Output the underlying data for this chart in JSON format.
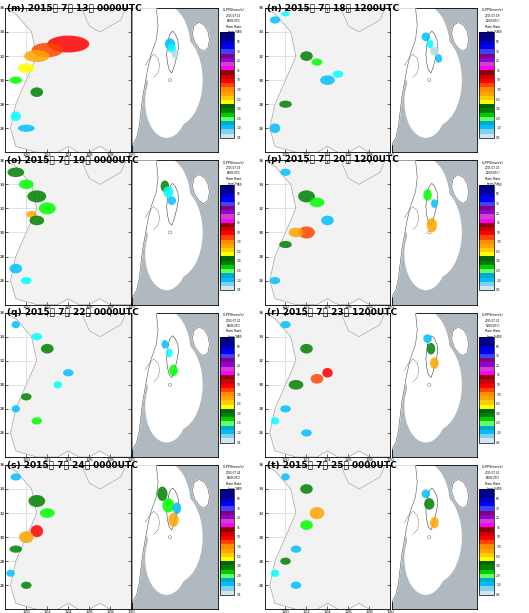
{
  "fig_width": 5.29,
  "fig_height": 6.13,
  "fig_dpi": 100,
  "fig_bg": "#ffffff",
  "n_rows": 4,
  "n_cols": 2,
  "titles": [
    "(m) 2015년 7월 13일 0000UTC",
    "(n) 2015년 7월 18일 1200UTC",
    "(o) 2015년 7월 19일 0000UTC",
    "(p) 2015년 7월 20일 1200UTC",
    "(q) 2015년 7월 22일 0000UTC",
    "(r) 2015년 7월 23일 1200UTC",
    "(s) 2015년 7월 24일 0000UTC",
    "(t) 2015년 7월 25일 0000UTC"
  ],
  "title_fontsize": 6.5,
  "cbar_colors_top_to_bottom": [
    "#00008b",
    "#00008b",
    "#0000cd",
    "#0000ff",
    "#4040ff",
    "#800080",
    "#9400d3",
    "#cc44cc",
    "#ff00ff",
    "#8b0000",
    "#cc0000",
    "#ff0000",
    "#ff4500",
    "#ff8c00",
    "#ffa500",
    "#ffcc00",
    "#ffff00",
    "#006400",
    "#008000",
    "#00cc00",
    "#66ff66",
    "#00aacc",
    "#00bfff",
    "#87ceeb",
    "#cce8f0"
  ],
  "cbar_label_vals": [
    "100",
    "50",
    "30",
    "20",
    "15",
    "10",
    "7.0",
    "5.0",
    "3.0",
    "2.0",
    "1.0",
    "0.5"
  ],
  "left_map_bg": "#ffffff",
  "left_map_land": "#f0f0f0",
  "left_map_border": "#aaaaaa",
  "left_map_grid": "#cccccc",
  "right_map_outer_bg": "#b0b8c0",
  "right_map_land_white": "#ffffff",
  "right_map_land_edge": "#666666",
  "right_radar_circle_bg": "#ffffff",
  "cbar_header_lines": [
    "CLPPS(mm/s)",
    "2015.07.13",
    "01:00(KST)",
    "Rain Rate",
    "(mm/h)"
  ]
}
